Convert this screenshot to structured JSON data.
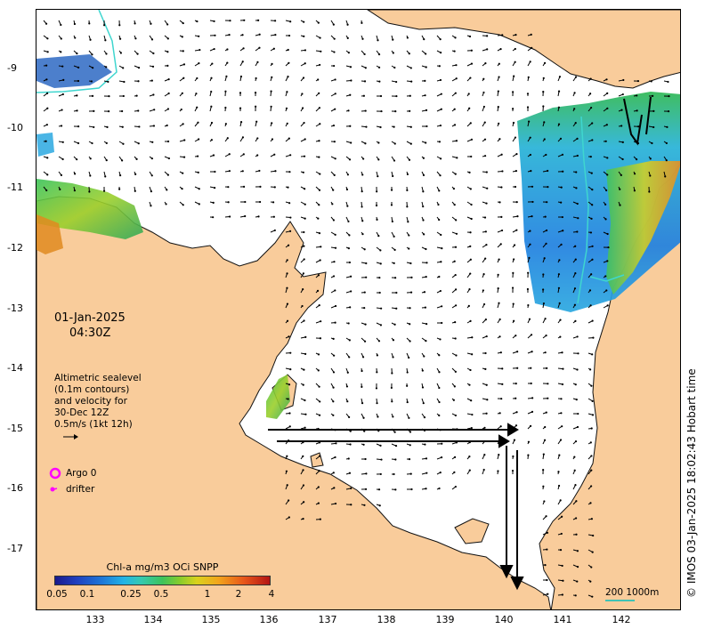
{
  "map": {
    "date": "01-Jan-2025",
    "time": "04:30Z",
    "altimetry_lines": [
      "Altimetric sealevel",
      "(0.1m contours)",
      "and velocity for",
      "30-Dec 12Z",
      "0.5m/s (1kt 12h)"
    ],
    "argo_label": "Argo 0",
    "drifter_label": "drifter",
    "credit": "© IMOS 03-Jan-2025 18:02:43 Hobart time",
    "colorbar_title": "Chl-a mg/m3 OCi SNPP",
    "colorbar_ticks": [
      "0.05",
      "0.1",
      "0.25",
      "0.5",
      "1",
      "2",
      "4"
    ],
    "scale_label": "200  1000m",
    "lat_labels": [
      "-9",
      "-10",
      "-11",
      "-12",
      "-13",
      "-14",
      "-15",
      "-16",
      "-17"
    ],
    "lon_labels": [
      "133",
      "134",
      "135",
      "136",
      "137",
      "138",
      "139",
      "140",
      "141",
      "142"
    ],
    "colors": {
      "land": "#f9cc9b",
      "ocean": "#ffffff",
      "coast": "#111111",
      "arrow": "#000000",
      "argo": "#ff00ff",
      "isobath": "#3fd6cf"
    }
  }
}
